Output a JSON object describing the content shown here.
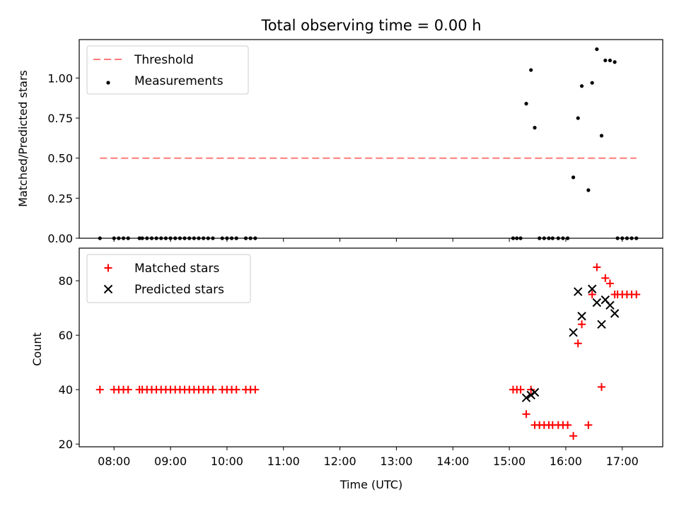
{
  "chart_data": {
    "title": "Total observing time = 0.00 h",
    "xlabel": "Time (UTC)",
    "x_tick_labels": [
      "08:00",
      "09:00",
      "10:00",
      "11:00",
      "12:00",
      "13:00",
      "14:00",
      "15:00",
      "16:00",
      "17:00"
    ],
    "x_ticks": [
      "08:00",
      "09:00",
      "10:00",
      "11:00",
      "12:00",
      "13:00",
      "14:00",
      "15:00",
      "16:00",
      "17:00"
    ],
    "xlim": [
      "07:23",
      "17:43"
    ],
    "panels": [
      {
        "type": "scatter",
        "ylabel": "Matched/Predicted stars",
        "ylim": [
          0,
          1.24
        ],
        "y_ticks": [
          0.0,
          0.25,
          0.5,
          0.75,
          1.0
        ],
        "y_tick_labels": [
          "0.00",
          "0.25",
          "0.50",
          "0.75",
          "1.00"
        ],
        "legend_position": "upper-left",
        "threshold": {
          "name": "Threshold",
          "value": 0.5,
          "x_range": [
            "07:45",
            "17:15"
          ],
          "color": "#ff7a7a",
          "style": "dashed"
        },
        "series": [
          {
            "name": "Measurements",
            "marker": "dot",
            "color": "#000000",
            "x": [
              "07:45",
              "08:00",
              "08:05",
              "08:10",
              "08:15",
              "08:27",
              "08:30",
              "08:35",
              "08:40",
              "08:45",
              "08:50",
              "08:55",
              "09:00",
              "09:05",
              "09:10",
              "09:15",
              "09:20",
              "09:25",
              "09:30",
              "09:35",
              "09:40",
              "09:45",
              "09:55",
              "10:00",
              "10:05",
              "10:10",
              "10:20",
              "10:25",
              "10:30",
              "15:04",
              "15:08",
              "15:12",
              "15:18",
              "15:23",
              "15:27",
              "15:32",
              "15:37",
              "15:42",
              "15:46",
              "15:52",
              "15:57",
              "16:02",
              "16:08",
              "16:13",
              "16:17",
              "16:24",
              "16:28",
              "16:33",
              "16:38",
              "16:42",
              "16:47",
              "16:52",
              "16:55",
              "17:00",
              "17:05",
              "17:10",
              "17:15"
            ],
            "y": [
              0,
              0,
              0,
              0,
              0,
              0,
              0,
              0,
              0,
              0,
              0,
              0,
              0,
              0,
              0,
              0,
              0,
              0,
              0,
              0,
              0,
              0,
              0,
              0,
              0,
              0,
              0,
              0,
              0,
              0,
              0,
              0,
              0.84,
              1.05,
              0.69,
              0,
              0,
              0,
              0,
              0,
              0,
              0,
              0.38,
              0.75,
              0.95,
              0.3,
              0.97,
              1.18,
              0.64,
              1.11,
              1.11,
              1.1,
              0,
              0,
              0,
              0,
              0
            ]
          }
        ]
      },
      {
        "type": "scatter",
        "ylabel": "Count",
        "ylim": [
          19,
          92
        ],
        "y_ticks": [
          20,
          40,
          60,
          80
        ],
        "y_tick_labels": [
          "20",
          "40",
          "60",
          "80"
        ],
        "legend_position": "upper-left",
        "series": [
          {
            "name": "Matched stars",
            "marker": "plus",
            "color": "#ff0000",
            "x": [
              "07:45",
              "08:00",
              "08:05",
              "08:10",
              "08:15",
              "08:27",
              "08:30",
              "08:35",
              "08:40",
              "08:45",
              "08:50",
              "08:55",
              "09:00",
              "09:05",
              "09:10",
              "09:15",
              "09:20",
              "09:25",
              "09:30",
              "09:35",
              "09:40",
              "09:45",
              "09:55",
              "10:00",
              "10:05",
              "10:10",
              "10:20",
              "10:25",
              "10:30",
              "15:04",
              "15:08",
              "15:12",
              "15:18",
              "15:23",
              "15:27",
              "15:32",
              "15:37",
              "15:42",
              "15:46",
              "15:52",
              "15:57",
              "16:02",
              "16:08",
              "16:13",
              "16:17",
              "16:24",
              "16:28",
              "16:33",
              "16:38",
              "16:42",
              "16:47",
              "16:52",
              "16:55",
              "17:00",
              "17:05",
              "17:10",
              "17:15"
            ],
            "y": [
              40,
              40,
              40,
              40,
              40,
              40,
              40,
              40,
              40,
              40,
              40,
              40,
              40,
              40,
              40,
              40,
              40,
              40,
              40,
              40,
              40,
              40,
              40,
              40,
              40,
              40,
              40,
              40,
              40,
              40,
              40,
              40,
              31,
              40,
              27,
              27,
              27,
              27,
              27,
              27,
              27,
              27,
              23,
              57,
              64,
              27,
              75,
              85,
              41,
              81,
              79,
              75,
              75,
              75,
              75,
              75,
              75
            ]
          },
          {
            "name": "Predicted stars",
            "marker": "x",
            "color": "#000000",
            "x": [
              "15:18",
              "15:23",
              "15:27",
              "16:08",
              "16:13",
              "16:17",
              "16:28",
              "16:33",
              "16:38",
              "16:42",
              "16:47",
              "16:52"
            ],
            "y": [
              37,
              38,
              39,
              61,
              76,
              67,
              77,
              72,
              64,
              73,
              71,
              68
            ]
          }
        ]
      }
    ]
  }
}
